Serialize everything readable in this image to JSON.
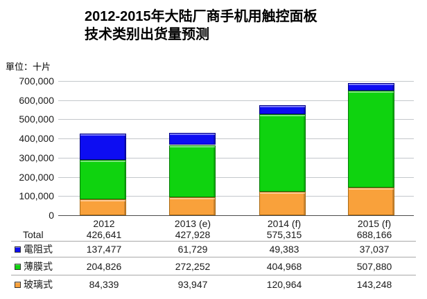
{
  "title": {
    "line1": "2012-2015年大陆厂商手机用触控面板",
    "line2": "技术类别出货量预测"
  },
  "unit_label": "單位：十片",
  "chart_data": {
    "type": "bar",
    "stacked": true,
    "title": "2012-2015年大陆厂商手机用触控面板技术类别出货量预测",
    "unit": "單位：十片",
    "categories": [
      "2012",
      "2013 (e)",
      "2014 (f)",
      "2015 (f)"
    ],
    "series": [
      {
        "name": "玻璃式",
        "semantic": "glass",
        "color": "#F9A13B",
        "border": "#a86a14",
        "values": [
          84339,
          93947,
          120964,
          143248
        ]
      },
      {
        "name": "薄膜式",
        "semantic": "film",
        "color": "#0FD30F",
        "border": "#067806",
        "values": [
          204826,
          272252,
          404968,
          507880
        ]
      },
      {
        "name": "電阻式",
        "semantic": "resistive",
        "color": "#0D0DF2",
        "border": "#000085",
        "values": [
          137477,
          61729,
          49383,
          37037
        ]
      }
    ],
    "totals": [
      426641,
      427928,
      575315,
      688166
    ],
    "ylim": [
      0,
      700000
    ],
    "ytick_step": 100000,
    "grid": true,
    "legend_position": "table-below-left"
  },
  "table": {
    "rows": [
      {
        "label": "Total",
        "swatch": null,
        "values": [
          "426,641",
          "427,928",
          "575,315",
          "688,166"
        ]
      },
      {
        "label": "電阻式",
        "swatch": "#0D0DF2",
        "values": [
          "137,477",
          "61,729",
          "49,383",
          "37,037"
        ]
      },
      {
        "label": "薄膜式",
        "swatch": "#0FD30F",
        "values": [
          "204,826",
          "272,252",
          "404,968",
          "507,880"
        ]
      },
      {
        "label": "玻璃式",
        "swatch": "#F9A13B",
        "values": [
          "84,339",
          "93,947",
          "120,964",
          "143,248"
        ]
      }
    ]
  }
}
